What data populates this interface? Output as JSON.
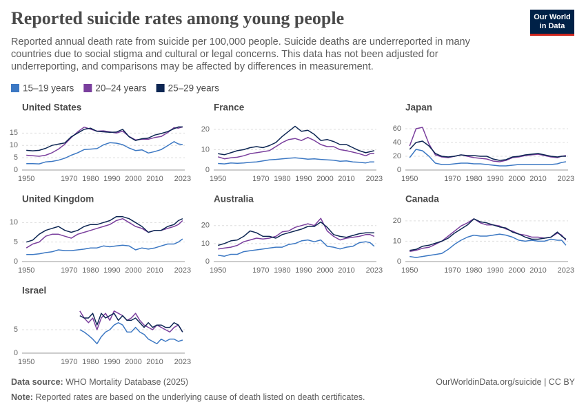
{
  "header": {
    "title": "Reported suicide rates among young people",
    "subtitle": "Reported annual death rate from suicide per 100,000 people. Suicide deaths are underreported in many countries due to social stigma and cultural or legal concerns. This data has not been adjusted for underreporting, and comparisons may be affected by differences in measurement.",
    "logo": [
      "Our World",
      "in Data"
    ]
  },
  "footer": {
    "source_label": "Data source:",
    "source": "WHO Mortality Database (2025)",
    "url": "OurWorldinData.org/suicide | CC BY",
    "note_label": "Note:",
    "note": "Reported rates are based on the underlying cause of death listed on death certificates."
  },
  "chart_data": [
    {
      "type": "line",
      "title": "United States",
      "x": [
        1950,
        1953,
        1956,
        1959,
        1962,
        1965,
        1968,
        1971,
        1974,
        1977,
        1980,
        1983,
        1986,
        1989,
        1992,
        1995,
        1998,
        2001,
        2004,
        2007,
        2010,
        2013,
        2016,
        2019,
        2021,
        2023
      ],
      "xlim": [
        1948,
        2024
      ],
      "xticks": [
        1950,
        1970,
        1980,
        1990,
        2000,
        2010,
        2023
      ],
      "ylim": [
        0,
        19
      ],
      "yticks": [
        0,
        5,
        10,
        15
      ],
      "series": [
        {
          "name": "15–19 years",
          "color": "#3c78c3",
          "values": [
            2.6,
            2.6,
            2.5,
            3.3,
            3.5,
            4.0,
            4.8,
            6.0,
            7.0,
            8.3,
            8.5,
            8.7,
            10.2,
            11.1,
            10.9,
            10.3,
            8.9,
            7.9,
            8.2,
            6.9,
            7.5,
            8.3,
            9.9,
            11.5,
            10.6,
            10.3
          ]
        },
        {
          "name": "20–24 years",
          "color": "#7a3f9d",
          "values": [
            6.0,
            5.8,
            5.6,
            6.0,
            7.0,
            8.5,
            10.5,
            13.2,
            15.5,
            17.4,
            16.6,
            15.8,
            15.9,
            15.5,
            15.0,
            15.8,
            13.6,
            12.2,
            12.5,
            12.5,
            13.2,
            13.6,
            15.2,
            17.2,
            17.0,
            17.5
          ]
        },
        {
          "name": "25–29 years",
          "color": "#0d2653",
          "values": [
            8.0,
            7.8,
            8.0,
            8.8,
            10.0,
            10.5,
            11.0,
            13.5,
            15.0,
            16.5,
            17.0,
            15.7,
            15.5,
            15.3,
            15.4,
            16.5,
            13.5,
            12.0,
            12.7,
            13.0,
            14.2,
            14.8,
            15.6,
            16.8,
            17.5,
            17.5
          ]
        }
      ]
    },
    {
      "type": "line",
      "title": "France",
      "x": [
        1950,
        1953,
        1956,
        1959,
        1962,
        1965,
        1968,
        1971,
        1974,
        1977,
        1980,
        1983,
        1986,
        1989,
        1992,
        1995,
        1998,
        2001,
        2004,
        2007,
        2010,
        2013,
        2016,
        2019,
        2021,
        2023
      ],
      "xlim": [
        1948,
        2024
      ],
      "xticks": [
        1950,
        1970,
        1980,
        1990,
        2000,
        2010,
        2023
      ],
      "ylim": [
        0,
        23
      ],
      "yticks": [
        0,
        10,
        20
      ],
      "series": [
        {
          "color": "#3c78c3",
          "values": [
            3.2,
            3.0,
            3.5,
            3.3,
            3.5,
            3.8,
            4.0,
            4.5,
            5.0,
            5.2,
            5.5,
            5.8,
            6.0,
            5.7,
            5.3,
            5.5,
            5.2,
            5.0,
            4.8,
            4.3,
            4.5,
            4.0,
            3.8,
            3.5,
            4.0,
            4.0
          ]
        },
        {
          "color": "#7a3f9d",
          "values": [
            6.5,
            5.5,
            6.0,
            6.3,
            7.0,
            8.0,
            8.5,
            9.0,
            9.5,
            11.5,
            13.5,
            15.0,
            15.5,
            14.5,
            16.0,
            14.5,
            12.5,
            11.5,
            11.5,
            10.0,
            9.5,
            8.8,
            8.0,
            7.0,
            8.0,
            8.2
          ]
        },
        {
          "color": "#0d2653",
          "values": [
            8.0,
            7.5,
            8.5,
            9.5,
            10.0,
            11.0,
            11.5,
            11.0,
            12.0,
            13.5,
            16.5,
            19.0,
            21.5,
            19.0,
            19.5,
            17.5,
            14.5,
            15.0,
            14.0,
            12.5,
            12.5,
            11.0,
            9.5,
            8.5,
            9.0,
            9.5
          ]
        }
      ]
    },
    {
      "type": "line",
      "title": "Japan",
      "x": [
        1950,
        1953,
        1956,
        1959,
        1962,
        1965,
        1968,
        1971,
        1974,
        1977,
        1980,
        1983,
        1986,
        1989,
        1992,
        1995,
        1998,
        2001,
        2004,
        2007,
        2010,
        2013,
        2016,
        2019,
        2021,
        2023
      ],
      "xlim": [
        1948,
        2024
      ],
      "xticks": [
        1950,
        1970,
        1980,
        1990,
        2000,
        2010,
        2023
      ],
      "ylim": [
        0,
        68
      ],
      "yticks": [
        0,
        20,
        40,
        60
      ],
      "series": [
        {
          "color": "#3c78c3",
          "values": [
            18,
            30,
            28,
            20,
            10,
            8,
            8,
            9,
            10,
            10,
            9,
            9,
            8,
            7,
            6,
            6,
            7,
            8,
            8,
            8,
            8,
            8,
            8,
            9,
            11,
            12
          ]
        },
        {
          "color": "#7a3f9d",
          "values": [
            35,
            60,
            62,
            38,
            22,
            19,
            18,
            20,
            22,
            20,
            18,
            17,
            16,
            13,
            12,
            14,
            18,
            19,
            21,
            22,
            23,
            21,
            19,
            18,
            20,
            21
          ]
        },
        {
          "color": "#0d2653",
          "values": [
            30,
            40,
            42,
            35,
            24,
            20,
            19,
            20,
            22,
            21,
            21,
            20,
            20,
            16,
            14,
            15,
            19,
            20,
            22,
            23,
            24,
            22,
            20,
            19,
            20,
            20
          ]
        }
      ]
    },
    {
      "type": "line",
      "title": "United Kingdom",
      "x": [
        1950,
        1953,
        1956,
        1959,
        1962,
        1965,
        1968,
        1971,
        1974,
        1977,
        1980,
        1983,
        1986,
        1989,
        1992,
        1995,
        1998,
        2001,
        2004,
        2007,
        2010,
        2013,
        2016,
        2019,
        2021,
        2023
      ],
      "xlim": [
        1948,
        2024
      ],
      "xticks": [
        1950,
        1970,
        1980,
        1990,
        2000,
        2010,
        2023
      ],
      "ylim": [
        0,
        12
      ],
      "yticks": [
        0,
        5,
        10
      ],
      "series": [
        {
          "color": "#3c78c3",
          "values": [
            1.8,
            1.8,
            2.0,
            2.3,
            2.5,
            3.0,
            2.8,
            2.8,
            3.0,
            3.2,
            3.5,
            3.5,
            4.0,
            3.8,
            4.0,
            4.2,
            4.0,
            3.0,
            3.5,
            3.2,
            3.5,
            4.0,
            4.5,
            4.5,
            5.0,
            5.8
          ]
        },
        {
          "color": "#7a3f9d",
          "values": [
            3.5,
            4.5,
            5.0,
            6.5,
            7.0,
            7.0,
            6.5,
            6.0,
            7.0,
            7.5,
            8.0,
            8.5,
            9.0,
            9.5,
            10.5,
            11.0,
            10.0,
            9.0,
            8.5,
            7.5,
            8.0,
            8.0,
            8.5,
            9.0,
            9.5,
            10.5
          ]
        },
        {
          "color": "#0d2653",
          "values": [
            5.0,
            5.5,
            7.0,
            8.0,
            8.5,
            9.0,
            8.0,
            7.5,
            8.0,
            9.0,
            9.5,
            9.5,
            10.0,
            10.5,
            11.5,
            11.5,
            11.0,
            10.0,
            9.0,
            7.5,
            8.0,
            8.0,
            9.0,
            9.5,
            10.5,
            11.0
          ]
        }
      ]
    },
    {
      "type": "line",
      "title": "Australia",
      "x": [
        1950,
        1953,
        1956,
        1959,
        1962,
        1965,
        1968,
        1971,
        1974,
        1977,
        1980,
        1983,
        1986,
        1989,
        1992,
        1995,
        1998,
        2001,
        2004,
        2007,
        2010,
        2013,
        2016,
        2019,
        2021,
        2023
      ],
      "xlim": [
        1948,
        2024
      ],
      "xticks": [
        1950,
        1970,
        1980,
        1990,
        2000,
        2010,
        2023
      ],
      "ylim": [
        0,
        26
      ],
      "yticks": [
        0,
        10,
        20
      ],
      "series": [
        {
          "color": "#3c78c3",
          "values": [
            3.5,
            3.0,
            4.0,
            4.0,
            5.5,
            6.0,
            6.5,
            7.0,
            7.5,
            8.0,
            8.0,
            9.5,
            10.0,
            11.5,
            12.0,
            11.0,
            12.0,
            8.5,
            8.0,
            7.0,
            8.0,
            8.5,
            10.5,
            11.0,
            10.5,
            8.5
          ]
        },
        {
          "color": "#7a3f9d",
          "values": [
            7.0,
            7.5,
            8.0,
            9.0,
            11.0,
            12.0,
            13.0,
            12.5,
            13.0,
            14.0,
            16.5,
            17.0,
            19.0,
            20.0,
            21.0,
            20.0,
            24.0,
            17.0,
            14.0,
            12.0,
            13.0,
            13.5,
            14.0,
            15.0,
            15.0,
            14.0
          ]
        },
        {
          "color": "#0d2653",
          "values": [
            9.0,
            10.0,
            11.5,
            12.0,
            14.0,
            17.0,
            16.0,
            14.0,
            14.0,
            13.0,
            15.0,
            16.0,
            17.0,
            18.0,
            19.5,
            19.5,
            22.0,
            19.0,
            15.0,
            14.0,
            13.5,
            14.5,
            15.5,
            16.0,
            16.0,
            16.0
          ]
        }
      ]
    },
    {
      "type": "line",
      "title": "Canada",
      "x": [
        1950,
        1953,
        1956,
        1959,
        1962,
        1965,
        1968,
        1971,
        1974,
        1977,
        1980,
        1983,
        1986,
        1989,
        1992,
        1995,
        1998,
        2001,
        2004,
        2007,
        2010,
        2013,
        2016,
        2019,
        2021,
        2023
      ],
      "xlim": [
        1948,
        2024
      ],
      "xticks": [
        1950,
        1970,
        1980,
        1990,
        2000,
        2010,
        2023
      ],
      "ylim": [
        0,
        23
      ],
      "yticks": [
        0,
        10,
        20
      ],
      "series": [
        {
          "color": "#3c78c3",
          "values": [
            2.5,
            2.0,
            2.5,
            3.0,
            3.5,
            4.0,
            6.0,
            8.5,
            10.5,
            12.0,
            13.0,
            12.5,
            12.5,
            13.0,
            13.5,
            13.0,
            12.0,
            10.5,
            10.0,
            10.5,
            10.0,
            10.0,
            11.0,
            10.5,
            10.5,
            8.0
          ]
        },
        {
          "color": "#7a3f9d",
          "values": [
            5.0,
            5.5,
            6.5,
            7.0,
            8.5,
            10.0,
            12.5,
            15.0,
            17.5,
            19.0,
            21.0,
            19.0,
            18.0,
            18.0,
            17.5,
            16.0,
            15.0,
            13.5,
            13.0,
            12.0,
            12.0,
            11.5,
            12.0,
            14.0,
            13.0,
            10.5
          ]
        },
        {
          "color": "#0d2653",
          "values": [
            5.5,
            6.0,
            7.5,
            8.0,
            9.0,
            10.0,
            11.5,
            14.0,
            16.0,
            18.0,
            21.0,
            19.5,
            19.0,
            18.0,
            17.0,
            16.5,
            14.5,
            13.5,
            12.0,
            11.0,
            11.0,
            11.5,
            12.0,
            14.5,
            12.5,
            11.0
          ]
        }
      ]
    },
    {
      "type": "line",
      "title": "Israel",
      "x": [
        1975,
        1977,
        1979,
        1981,
        1983,
        1985,
        1987,
        1989,
        1991,
        1993,
        1995,
        1997,
        1999,
        2001,
        2003,
        2005,
        2007,
        2009,
        2011,
        2013,
        2015,
        2017,
        2019,
        2021,
        2023
      ],
      "xlim": [
        1948,
        2024
      ],
      "xticks": [
        1950,
        1970,
        1980,
        1990,
        2000,
        2010,
        2023
      ],
      "ylim": [
        0,
        10
      ],
      "yticks": [
        0,
        5
      ],
      "series": [
        {
          "color": "#3c78c3",
          "values": [
            5.0,
            4.5,
            3.8,
            3.0,
            2.0,
            3.5,
            4.5,
            5.0,
            6.0,
            6.5,
            6.0,
            4.5,
            4.5,
            5.5,
            4.5,
            4.0,
            3.0,
            2.5,
            2.0,
            3.0,
            2.5,
            3.0,
            3.0,
            2.5,
            2.8
          ]
        },
        {
          "color": "#7a3f9d",
          "values": [
            9.0,
            7.5,
            6.5,
            7.5,
            5.0,
            7.5,
            8.5,
            7.0,
            9.0,
            8.5,
            8.0,
            7.0,
            7.5,
            8.5,
            7.0,
            6.0,
            5.5,
            5.0,
            6.0,
            5.5,
            5.0,
            4.5,
            5.5,
            6.0,
            4.5
          ]
        },
        {
          "color": "#0d2653",
          "values": [
            8.0,
            7.5,
            7.5,
            8.5,
            6.0,
            8.5,
            7.5,
            8.0,
            8.5,
            7.0,
            8.0,
            7.0,
            7.0,
            7.5,
            6.5,
            5.5,
            6.5,
            5.5,
            6.0,
            6.0,
            5.5,
            5.5,
            6.5,
            6.0,
            4.5
          ]
        }
      ]
    }
  ]
}
